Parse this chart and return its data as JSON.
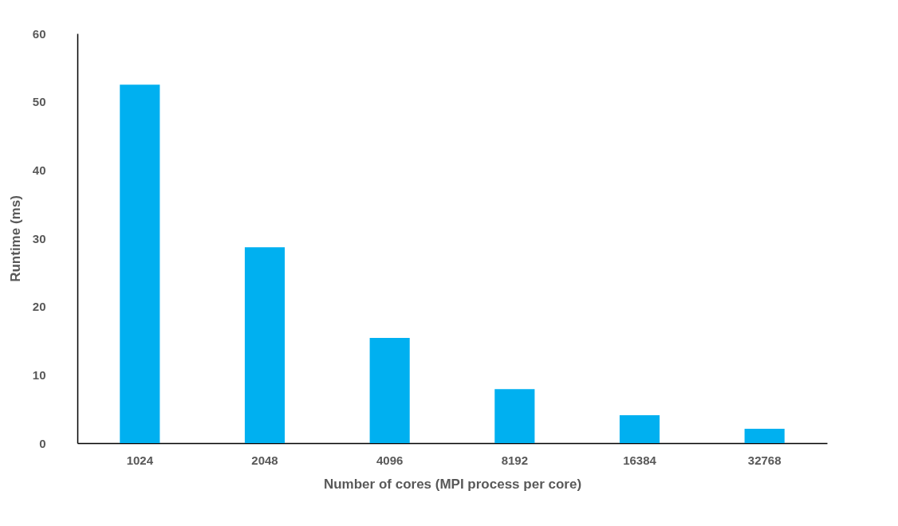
{
  "chart_data": {
    "type": "bar",
    "xlabel": "Number of cores (MPI  process per core)",
    "ylabel": "Runtime (ms)",
    "categories": [
      "1024",
      "2048",
      "4096",
      "8192",
      "16384",
      "32768"
    ],
    "values": [
      52.5,
      28.7,
      15.4,
      7.9,
      4.1,
      2.1
    ],
    "color": "#00b0f0",
    "ylim": [
      0,
      60
    ],
    "yticks": [
      0,
      10,
      20,
      30,
      40,
      50,
      60
    ],
    "grid": false
  }
}
